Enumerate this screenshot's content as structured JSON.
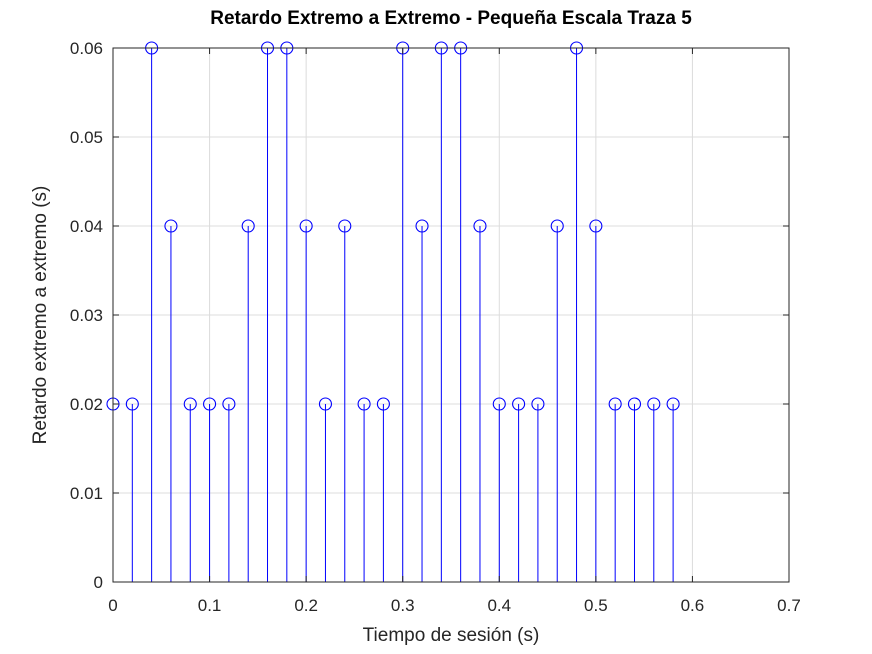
{
  "chart_data": {
    "type": "stem",
    "title": "Retardo Extremo a Extremo - Pequeña Escala Traza 5",
    "xlabel": "Tiempo de sesión (s)",
    "ylabel": "Retardo extremo a extremo (s)",
    "xlim": [
      0,
      0.7
    ],
    "ylim": [
      0,
      0.06
    ],
    "xticks": [
      0,
      0.1,
      0.2,
      0.3,
      0.4,
      0.5,
      0.6,
      0.7
    ],
    "xtick_labels": [
      "0",
      "0.1",
      "0.2",
      "0.3",
      "0.4",
      "0.5",
      "0.6",
      "0.7"
    ],
    "yticks": [
      0,
      0.01,
      0.02,
      0.03,
      0.04,
      0.05,
      0.06
    ],
    "ytick_labels": [
      "0",
      "0.01",
      "0.02",
      "0.03",
      "0.04",
      "0.05",
      "0.06"
    ],
    "grid": true,
    "color": "#0000ff",
    "marker": "circle",
    "x": [
      0,
      0.02,
      0.04,
      0.06,
      0.08,
      0.1,
      0.12,
      0.14,
      0.16,
      0.18,
      0.2,
      0.22,
      0.24,
      0.26,
      0.28,
      0.3,
      0.32,
      0.34,
      0.36,
      0.38,
      0.4,
      0.42,
      0.44,
      0.46,
      0.48,
      0.5,
      0.52,
      0.54,
      0.56,
      0.58
    ],
    "y": [
      0.02,
      0.02,
      0.06,
      0.04,
      0.02,
      0.02,
      0.02,
      0.04,
      0.06,
      0.06,
      0.04,
      0.02,
      0.04,
      0.02,
      0.02,
      0.06,
      0.04,
      0.06,
      0.06,
      0.04,
      0.02,
      0.02,
      0.02,
      0.04,
      0.06,
      0.04,
      0.02,
      0.02,
      0.02,
      0.02
    ]
  }
}
